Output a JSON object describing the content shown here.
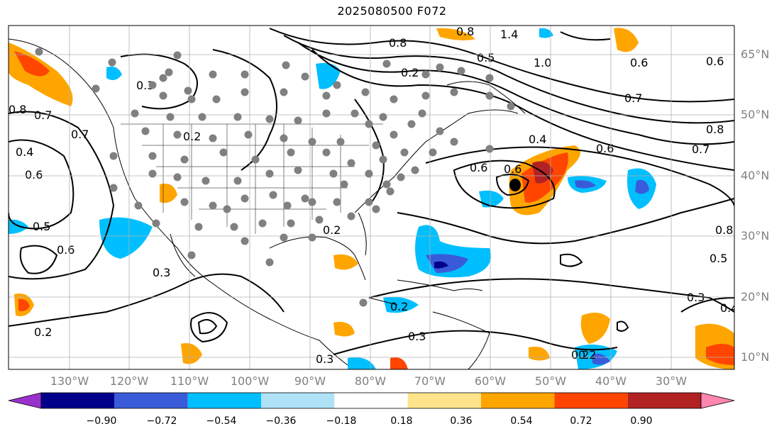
{
  "title": "2025080500 F072",
  "lat_labels": [
    "65°N",
    "60°N",
    "50°N",
    "40°N",
    "30°N",
    "20°N",
    "10°N"
  ],
  "lon_labels": [
    "130°W",
    "120°W",
    "110°W",
    "100°W",
    "90°W",
    "80°W",
    "70°W",
    "60°W",
    "50°W",
    "40°W",
    "30°W"
  ],
  "colorbar": {
    "ticks": [
      "−0.90",
      "−0.72",
      "−0.54",
      "−0.36",
      "−0.18",
      "0.18",
      "0.36",
      "0.54",
      "0.72",
      "0.90"
    ],
    "colors": [
      "#9932cc",
      "#00008b",
      "#3a5bd9",
      "#00bfff",
      "#afe1f7",
      "#ffffff",
      "#ffe48c",
      "#ffa500",
      "#ff4500",
      "#b22222",
      "#ff86b0"
    ]
  },
  "contour_labels": [
    "1.4",
    "0.8",
    "0.8",
    "0.5",
    "1.0",
    "0.2",
    "0.6",
    "0.6",
    "0.7",
    "0.4",
    "0.6",
    "0.7",
    "0.8",
    "0.6",
    "0.6",
    "0.8",
    "0.5",
    "0.2",
    "0.2",
    "0.3",
    "0.3",
    "0.4",
    "0.2",
    "0.2",
    "0.3",
    "0.8",
    "0.7",
    "0.4",
    "0.7",
    "0.3",
    "0.6",
    "0.6",
    "0.5",
    "0.3",
    "0.2",
    "0.2"
  ]
}
